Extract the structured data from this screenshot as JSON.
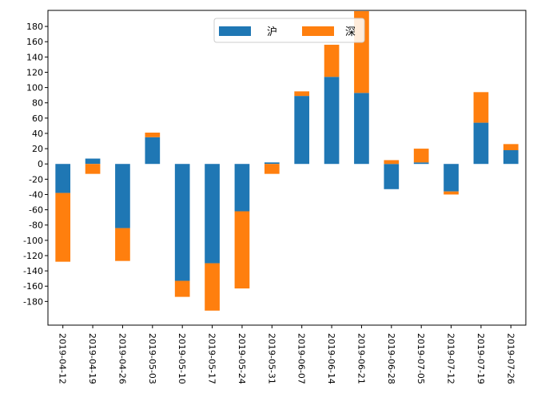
{
  "chart_data": {
    "type": "bar",
    "stacked": true,
    "categories": [
      "2019-04-12",
      "2019-04-19",
      "2019-04-26",
      "2019-05-03",
      "2019-05-10",
      "2019-05-17",
      "2019-05-24",
      "2019-05-31",
      "2019-06-07",
      "2019-06-14",
      "2019-06-21",
      "2019-06-28",
      "2019-07-05",
      "2019-07-12",
      "2019-07-19",
      "2019-07-26"
    ],
    "series": [
      {
        "name": "沪",
        "color": "#1f77b4",
        "values": [
          -38,
          7,
          -84,
          35,
          -153,
          -130,
          -62,
          2,
          89,
          114,
          93,
          -33,
          2,
          -36,
          54,
          18
        ]
      },
      {
        "name": "深",
        "color": "#ff7f0e",
        "values": [
          -90,
          -13,
          -43,
          6,
          -21,
          -62,
          -101,
          -13,
          6,
          42,
          107,
          5,
          18,
          -4,
          40,
          8
        ]
      }
    ],
    "yticks": [
      -180,
      -160,
      -140,
      -120,
      -100,
      -80,
      -60,
      -40,
      -20,
      0,
      20,
      40,
      60,
      80,
      100,
      120,
      140,
      160,
      180
    ],
    "ylim": [
      -211,
      201
    ],
    "title": "",
    "xlabel": "",
    "ylabel": "",
    "legend_position": "top-center",
    "grid": false
  }
}
